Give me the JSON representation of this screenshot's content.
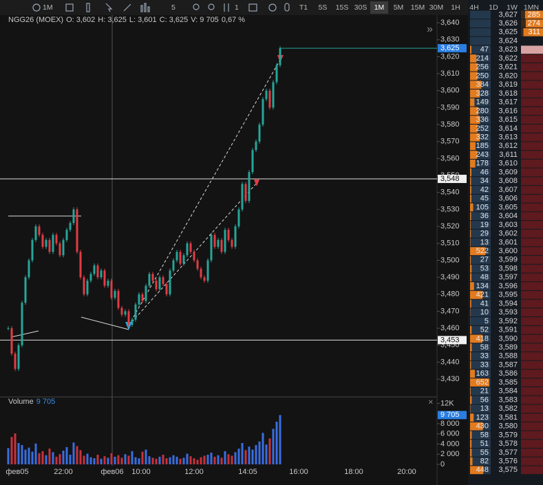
{
  "toolbar": {
    "interval": "1M",
    "items": [
      "5",
      "1"
    ],
    "timeframes": [
      "T1",
      "5S",
      "15S",
      "30S",
      "1M",
      "5M",
      "15M",
      "30M",
      "1H",
      "4H",
      "1D",
      "1W",
      "1MN"
    ],
    "active_timeframe": 4
  },
  "chart_data": {
    "type": "line",
    "title": "NGG26 (MOEX)",
    "legend_text": [
      "O: 3,602",
      "H: 3,625",
      "L: 3,601",
      "C: 3,625",
      "V: 9 705",
      "0,67 %"
    ],
    "up_color": "#26a69a",
    "down_color": "#e23c45",
    "values": [
      3.46,
      3.445,
      3.436,
      3.45,
      3.475,
      3.49,
      3.5,
      3.512,
      3.52,
      3.515,
      3.508,
      3.512,
      3.505,
      3.515,
      3.51,
      3.503,
      3.512,
      3.518,
      3.522,
      3.53,
      3.505,
      3.49,
      3.48,
      3.488,
      3.492,
      3.497,
      3.49,
      3.494,
      3.485,
      3.488,
      3.478,
      3.482,
      3.472,
      3.468,
      3.47,
      3.462,
      3.465,
      3.474,
      3.48,
      3.476,
      3.485,
      3.492,
      3.488,
      3.483,
      3.49,
      3.486,
      3.48,
      3.494,
      3.5,
      3.505,
      3.498,
      3.503,
      3.51,
      3.505,
      3.5,
      3.495,
      3.49,
      3.488,
      3.5,
      3.515,
      3.508,
      3.512,
      3.505,
      3.518,
      3.512,
      3.508,
      3.52,
      3.53,
      3.545,
      3.535,
      3.552,
      3.565,
      3.57,
      3.58,
      3.595,
      3.6,
      3.59,
      3.605,
      3.615,
      3.625
    ],
    "ylim": [
      3.4195,
      3.6445
    ],
    "yticks": [
      {
        "value": 3.64,
        "label": "3,640"
      },
      {
        "value": 3.63,
        "label": "3,630"
      },
      {
        "value": 3.62,
        "label": "3,620"
      },
      {
        "value": 3.61,
        "label": "3,610"
      },
      {
        "value": 3.6,
        "label": "3,600"
      },
      {
        "value": 3.59,
        "label": "3,590"
      },
      {
        "value": 3.58,
        "label": "3,580"
      },
      {
        "value": 3.57,
        "label": "3,570"
      },
      {
        "value": 3.56,
        "label": "3,560"
      },
      {
        "value": 3.55,
        "label": "3,550"
      },
      {
        "value": 3.54,
        "label": "3,540"
      },
      {
        "value": 3.53,
        "label": "3,530"
      },
      {
        "value": 3.52,
        "label": "3,520"
      },
      {
        "value": 3.51,
        "label": "3,510"
      },
      {
        "value": 3.5,
        "label": "3,500"
      },
      {
        "value": 3.49,
        "label": "3,490"
      },
      {
        "value": 3.48,
        "label": "3,480"
      },
      {
        "value": 3.47,
        "label": "3,470"
      },
      {
        "value": 3.46,
        "label": "3,460"
      },
      {
        "value": 3.45,
        "label": "3,450"
      },
      {
        "value": 3.44,
        "label": "3,440"
      },
      {
        "value": 3.43,
        "label": "3,430"
      }
    ],
    "last_price": {
      "value": 3.625,
      "label": "3,625"
    },
    "levels": [
      {
        "value": 3.548,
        "label": "3,548"
      },
      {
        "value": 3.453,
        "label": "3,453"
      }
    ],
    "xticks": [
      "фев05",
      "22:00",
      "фев06",
      "10:00",
      "12:00",
      "14:05",
      "16:00",
      "18:00",
      "20:00"
    ],
    "volume": {
      "title": "Volume",
      "last": 9705,
      "last_label": "9 705",
      "values": [
        3200,
        5400,
        6100,
        4200,
        3800,
        2900,
        3300,
        2500,
        4100,
        2200,
        2600,
        1800,
        3100,
        2400,
        1500,
        2000,
        2700,
        3400,
        1900,
        4300,
        3600,
        2800,
        1700,
        2100,
        1400,
        1200,
        1900,
        1100,
        1600,
        1300,
        2200,
        1500,
        1800,
        1300,
        2000,
        1700,
        2600,
        1400,
        1200,
        2500,
        2900,
        1600,
        1300,
        1100,
        1500,
        1900,
        1200,
        1400,
        1800,
        1500,
        1100,
        1300,
        2100,
        1600,
        1200,
        900,
        1400,
        1700,
        1900,
        2300,
        1500,
        1800,
        1300,
        2600,
        2000,
        1700,
        2400,
        3100,
        4200,
        2800,
        3500,
        2900,
        3800,
        4500,
        6200,
        3900,
        5100,
        7000,
        8400,
        9705
      ],
      "up_color": "#3a6ee0",
      "down_color": "#c8323c",
      "ylim": [
        0,
        13000
      ],
      "yticks": [
        {
          "value": 12000,
          "label": "12K"
        },
        {
          "value": 8000,
          "label": "8 000"
        },
        {
          "value": 6000,
          "label": "6 000"
        },
        {
          "value": 4000,
          "label": "4 000"
        },
        {
          "value": 2000,
          "label": "2 000"
        },
        0
      ]
    }
  },
  "order_book": {
    "rows": [
      {
        "price": "3,627",
        "size": 285,
        "side": "ask"
      },
      {
        "price": "3,626",
        "size": 274,
        "side": "ask"
      },
      {
        "price": "3,625",
        "size": 311,
        "side": "ask"
      },
      {
        "price": "3,624"
      },
      {
        "price": "3,623",
        "size": 47,
        "side": "bid"
      },
      {
        "price": "3,622",
        "size": 214,
        "side": "bid"
      },
      {
        "price": "3,621",
        "size": 256,
        "side": "bid"
      },
      {
        "price": "3,620",
        "size": 250,
        "side": "bid"
      },
      {
        "price": "3,619",
        "size": 384,
        "side": "bid"
      },
      {
        "price": "3,618",
        "size": 328,
        "side": "bid"
      },
      {
        "price": "3,617",
        "size": 149,
        "side": "bid"
      },
      {
        "price": "3,616",
        "size": 280,
        "side": "bid"
      },
      {
        "price": "3,615",
        "size": 336,
        "side": "bid"
      },
      {
        "price": "3,614",
        "size": 252,
        "side": "bid"
      },
      {
        "price": "3,613",
        "size": 332,
        "side": "bid"
      },
      {
        "price": "3,612",
        "size": 185,
        "side": "bid"
      },
      {
        "price": "3,611",
        "size": 243,
        "side": "bid"
      },
      {
        "price": "3,610",
        "size": 178,
        "side": "bid"
      },
      {
        "price": "3,609",
        "size": 46,
        "side": "bid"
      },
      {
        "price": "3,608",
        "size": 34,
        "side": "bid"
      },
      {
        "price": "3,607",
        "size": 42,
        "side": "bid"
      },
      {
        "price": "3,606",
        "size": 45,
        "side": "bid"
      },
      {
        "price": "3,605",
        "size": 105,
        "side": "bid"
      },
      {
        "price": "3,604",
        "size": 36,
        "side": "bid"
      },
      {
        "price": "3,603",
        "size": 19,
        "side": "bid"
      },
      {
        "price": "3,602",
        "size": 29,
        "side": "bid"
      },
      {
        "price": "3,601",
        "size": 13,
        "side": "bid"
      },
      {
        "price": "3,600",
        "size": 522,
        "side": "bid"
      },
      {
        "price": "3,599",
        "size": 27,
        "side": "bid"
      },
      {
        "price": "3,598",
        "size": 53,
        "side": "bid"
      },
      {
        "price": "3,597",
        "size": 48,
        "side": "bid"
      },
      {
        "price": "3,596",
        "size": 134,
        "side": "bid"
      },
      {
        "price": "3,595",
        "size": 421,
        "side": "bid"
      },
      {
        "price": "3,594",
        "size": 41,
        "side": "bid"
      },
      {
        "price": "3,593",
        "size": 10,
        "side": "bid"
      },
      {
        "price": "3,592",
        "size": 5,
        "side": "bid"
      },
      {
        "price": "3,591",
        "size": 52,
        "side": "bid"
      },
      {
        "price": "3,590",
        "size": 418,
        "side": "bid"
      },
      {
        "price": "3,589",
        "size": 58,
        "side": "bid"
      },
      {
        "price": "3,588",
        "size": 33,
        "side": "bid"
      },
      {
        "price": "3,587",
        "size": 33,
        "side": "bid"
      },
      {
        "price": "3,586",
        "size": 163,
        "side": "bid"
      },
      {
        "price": "3,585",
        "size": 652,
        "side": "bid"
      },
      {
        "price": "3,584",
        "size": 21,
        "side": "bid"
      },
      {
        "price": "3,583",
        "size": 56,
        "side": "bid"
      },
      {
        "price": "3,582",
        "size": 13,
        "side": "bid"
      },
      {
        "price": "3,581",
        "size": 123,
        "side": "bid"
      },
      {
        "price": "3,580",
        "size": 430,
        "side": "bid"
      },
      {
        "price": "3,579",
        "size": 58,
        "side": "bid"
      },
      {
        "price": "3,578",
        "size": 51,
        "side": "bid"
      },
      {
        "price": "3,577",
        "size": 55,
        "side": "bid"
      },
      {
        "price": "3,576",
        "size": 82,
        "side": "bid"
      },
      {
        "price": "3,575",
        "size": 448,
        "side": "bid"
      }
    ]
  }
}
